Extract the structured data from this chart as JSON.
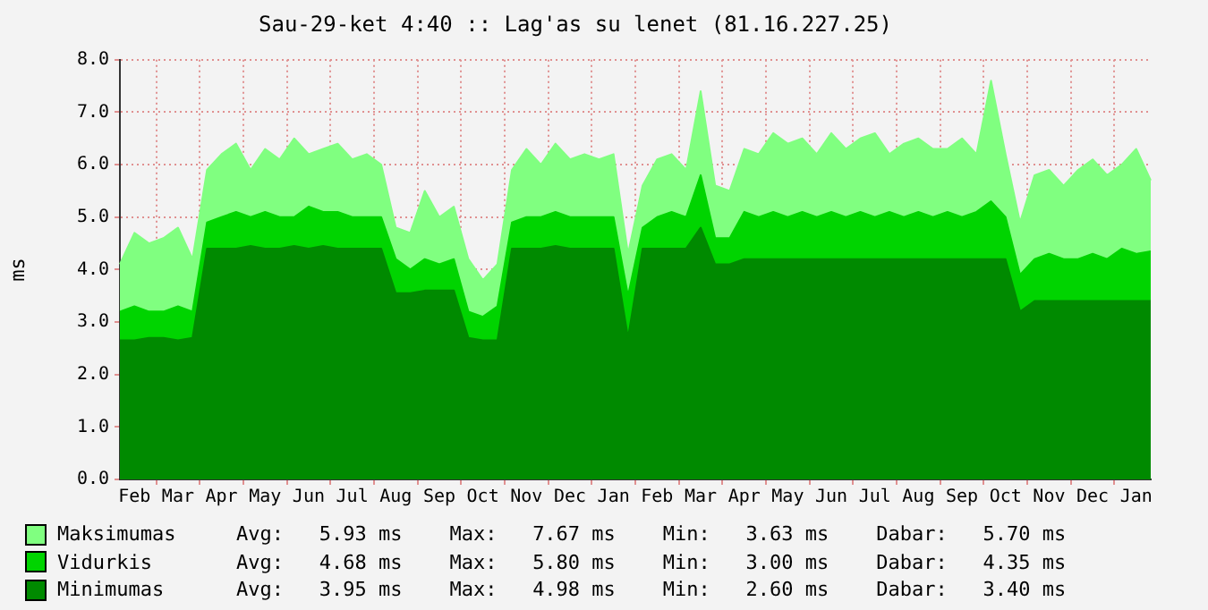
{
  "chart_data": {
    "type": "area",
    "title": "Sau-29-ket 4:40 :: Lag'as su lenet (81.16.227.25)",
    "ylabel": "ms",
    "categories": [
      null,
      "Feb",
      null,
      null,
      "Mar",
      null,
      null,
      "Apr",
      null,
      null,
      "May",
      null,
      null,
      "Jun",
      null,
      null,
      "Jul",
      null,
      null,
      "Aug",
      null,
      null,
      "Sep",
      null,
      null,
      "Oct",
      null,
      null,
      "Nov",
      null,
      null,
      "Dec",
      null,
      null,
      "Jan",
      null,
      null,
      "Feb",
      null,
      null,
      "Mar",
      null,
      null,
      "Apr",
      null,
      null,
      "May",
      null,
      null,
      "Jun",
      null,
      null,
      "Jul",
      null,
      null,
      "Aug",
      null,
      null,
      "Sep",
      null,
      null,
      "Oct",
      null,
      null,
      "Nov",
      null,
      null,
      "Dec",
      null,
      null,
      "Jan",
      null
    ],
    "series": [
      {
        "name": "Maksimumas",
        "color": "#80ff80",
        "values": [
          4.1,
          4.7,
          4.5,
          4.6,
          4.8,
          4.2,
          5.9,
          6.2,
          6.4,
          5.9,
          6.3,
          6.1,
          6.5,
          6.2,
          6.3,
          6.4,
          6.1,
          6.2,
          6.0,
          4.8,
          4.7,
          5.5,
          5.0,
          5.2,
          4.2,
          3.8,
          4.1,
          5.9,
          6.3,
          6.0,
          6.4,
          6.1,
          6.2,
          6.1,
          6.2,
          4.3,
          5.6,
          6.1,
          6.2,
          5.9,
          7.4,
          5.6,
          5.5,
          6.3,
          6.2,
          6.6,
          6.4,
          6.5,
          6.2,
          6.6,
          6.3,
          6.5,
          6.6,
          6.2,
          6.4,
          6.5,
          6.3,
          6.3,
          6.5,
          6.2,
          7.6,
          6.2,
          4.9,
          5.8,
          5.9,
          5.6,
          5.9,
          6.1,
          5.8,
          6.0,
          6.3,
          5.7
        ]
      },
      {
        "name": "Vidurkis",
        "color": "#00d400",
        "values": [
          3.2,
          3.3,
          3.2,
          3.2,
          3.3,
          3.2,
          4.9,
          5.0,
          5.1,
          5.0,
          5.1,
          5.0,
          5.0,
          5.2,
          5.1,
          5.1,
          5.0,
          5.0,
          5.0,
          4.2,
          4.0,
          4.2,
          4.1,
          4.2,
          3.2,
          3.1,
          3.3,
          4.9,
          5.0,
          5.0,
          5.1,
          5.0,
          5.0,
          5.0,
          5.0,
          3.5,
          4.8,
          5.0,
          5.1,
          5.0,
          5.8,
          4.6,
          4.6,
          5.1,
          5.0,
          5.1,
          5.0,
          5.1,
          5.0,
          5.1,
          5.0,
          5.1,
          5.0,
          5.1,
          5.0,
          5.1,
          5.0,
          5.1,
          5.0,
          5.1,
          5.3,
          5.0,
          3.9,
          4.2,
          4.3,
          4.2,
          4.2,
          4.3,
          4.2,
          4.4,
          4.3,
          4.35
        ]
      },
      {
        "name": "Minimumas",
        "color": "#008a00",
        "values": [
          2.65,
          2.65,
          2.7,
          2.7,
          2.65,
          2.7,
          4.4,
          4.4,
          4.4,
          4.45,
          4.4,
          4.4,
          4.45,
          4.4,
          4.45,
          4.4,
          4.4,
          4.4,
          4.4,
          3.55,
          3.55,
          3.6,
          3.6,
          3.6,
          2.7,
          2.65,
          2.65,
          4.4,
          4.4,
          4.4,
          4.45,
          4.4,
          4.4,
          4.4,
          4.4,
          2.7,
          4.4,
          4.4,
          4.4,
          4.4,
          4.8,
          4.1,
          4.1,
          4.2,
          4.2,
          4.2,
          4.2,
          4.2,
          4.2,
          4.2,
          4.2,
          4.2,
          4.2,
          4.2,
          4.2,
          4.2,
          4.2,
          4.2,
          4.2,
          4.2,
          4.2,
          4.2,
          3.2,
          3.4,
          3.4,
          3.4,
          3.4,
          3.4,
          3.4,
          3.4,
          3.4,
          3.4
        ]
      }
    ],
    "annotations": [
      "Avg:   5.93 ms    Max:   7.67 ms    Min:   3.63 ms    Dabar:   5.70 ms",
      "Avg:   4.68 ms    Max:   5.80 ms    Min:   3.00 ms    Dabar:   4.35 ms",
      "Avg:   3.95 ms    Max:   4.98 ms    Min:   2.60 ms    Dabar:   3.40 ms"
    ],
    "ylim": [
      0,
      8
    ],
    "yticks": [
      {
        "value": 0,
        "label": "0.0"
      },
      {
        "value": 1,
        "label": "1.0"
      },
      {
        "value": 2,
        "label": "2.0"
      },
      {
        "value": 3,
        "label": "3.0"
      },
      {
        "value": 4,
        "label": "4.0"
      },
      {
        "value": 5,
        "label": "5.0"
      },
      {
        "value": 6,
        "label": "6.0"
      },
      {
        "value": 7,
        "label": "7.0"
      },
      {
        "value": 8,
        "label": "8.0"
      }
    ],
    "grid": true,
    "legend": "bottom",
    "marker": "none"
  }
}
